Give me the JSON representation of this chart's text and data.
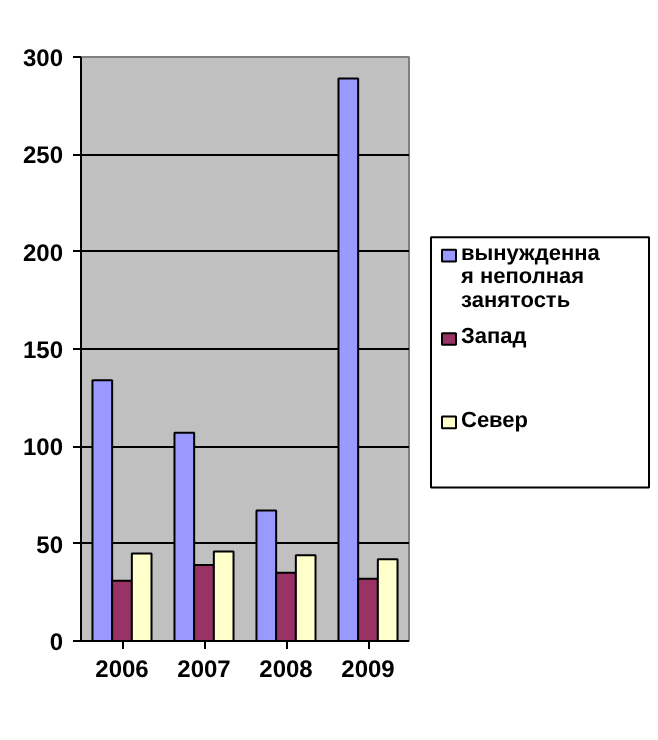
{
  "chart_data": {
    "type": "bar",
    "categories": [
      "2006",
      "2007",
      "2008",
      "2009"
    ],
    "series": [
      {
        "name": "вынужденная неполная занятость",
        "color": "#9999ff",
        "values": [
          134,
          107,
          67,
          289
        ]
      },
      {
        "name": "Запад",
        "color": "#993366",
        "values": [
          31,
          39,
          35,
          32
        ]
      },
      {
        "name": "Север",
        "color": "#ffffcc",
        "values": [
          45,
          46,
          44,
          42
        ]
      }
    ],
    "ylim": [
      0,
      300
    ],
    "yticks": [
      0,
      50,
      100,
      150,
      200,
      250,
      300
    ],
    "grid": "y",
    "legend": "right"
  }
}
